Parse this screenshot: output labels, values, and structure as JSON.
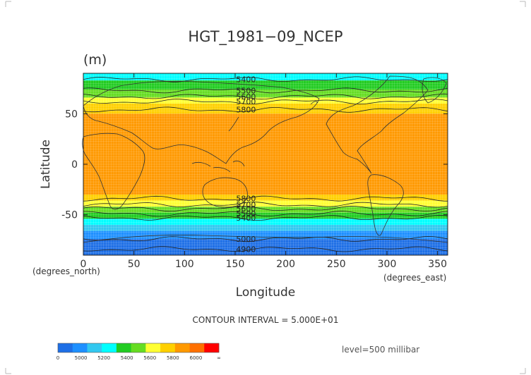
{
  "chart_data": {
    "type": "heatmap",
    "title": "HGT_1981−09_NCEP",
    "units": "(m)",
    "xlabel": "Longitude",
    "ylabel": "Latitude",
    "x_unit_note": "(degrees_east)",
    "y_unit_note": "(degrees_north)",
    "xlim": [
      0,
      360
    ],
    "ylim": [
      -90,
      90
    ],
    "x_ticks": [
      0,
      50,
      100,
      150,
      200,
      250,
      300,
      350
    ],
    "y_ticks": [
      50,
      0,
      -50
    ],
    "contour_interval": "CONTOUR INTERVAL = 5.000E+01",
    "level": "level=500 millibar",
    "colorbar": {
      "labels": [
        "0",
        "5000",
        "5200",
        "5400",
        "5600",
        "5800",
        "6000",
        "∞"
      ],
      "colors": [
        "#1e6fe6",
        "#1e90ff",
        "#32c8f0",
        "#00ffff",
        "#22cc22",
        "#66dd22",
        "#ffff33",
        "#ffd000",
        "#ff9900",
        "#ff7000",
        "#ff0000"
      ]
    },
    "bands": [
      {
        "from": 90,
        "to": 83,
        "color": "#00ffff"
      },
      {
        "from": 83,
        "to": 74,
        "color": "#22cc22"
      },
      {
        "from": 74,
        "to": 66,
        "color": "#66dd22"
      },
      {
        "from": 66,
        "to": 60,
        "color": "#ffff33"
      },
      {
        "from": 60,
        "to": 50,
        "color": "#ffd000"
      },
      {
        "from": 50,
        "to": -30,
        "color": "#ff9900"
      },
      {
        "from": -30,
        "to": -36,
        "color": "#ffd000"
      },
      {
        "from": -36,
        "to": -42,
        "color": "#ffff33"
      },
      {
        "from": -42,
        "to": -48,
        "color": "#66dd22"
      },
      {
        "from": -48,
        "to": -54,
        "color": "#22cc22"
      },
      {
        "from": -54,
        "to": -60,
        "color": "#00ffff"
      },
      {
        "from": -60,
        "to": -66,
        "color": "#32c8f0"
      },
      {
        "from": -66,
        "to": -74,
        "color": "#1e90ff"
      },
      {
        "from": -74,
        "to": -90,
        "color": "#1e6fe6"
      }
    ],
    "contours": [
      {
        "level": 5400,
        "lat": 84,
        "label_lon": 130
      },
      {
        "level": 5500,
        "lat": 73,
        "label_lon": 130
      },
      {
        "level": 5600,
        "lat": 67,
        "label_lon": 130
      },
      {
        "level": 5700,
        "lat": 62,
        "label_lon": 130
      },
      {
        "level": 5800,
        "lat": 54,
        "label_lon": 130
      },
      {
        "level": 5800,
        "lat": -34,
        "label_lon": 130
      },
      {
        "level": 5700,
        "lat": -40,
        "label_lon": 130
      },
      {
        "level": 5600,
        "lat": -44,
        "label_lon": 130
      },
      {
        "level": 5500,
        "lat": -49,
        "label_lon": 130
      },
      {
        "level": 5400,
        "lat": -53,
        "label_lon": 130
      },
      {
        "level": 5000,
        "lat": -74,
        "label_lon": 130
      },
      {
        "level": 4900,
        "lat": -84,
        "label_lon": 130
      }
    ]
  }
}
